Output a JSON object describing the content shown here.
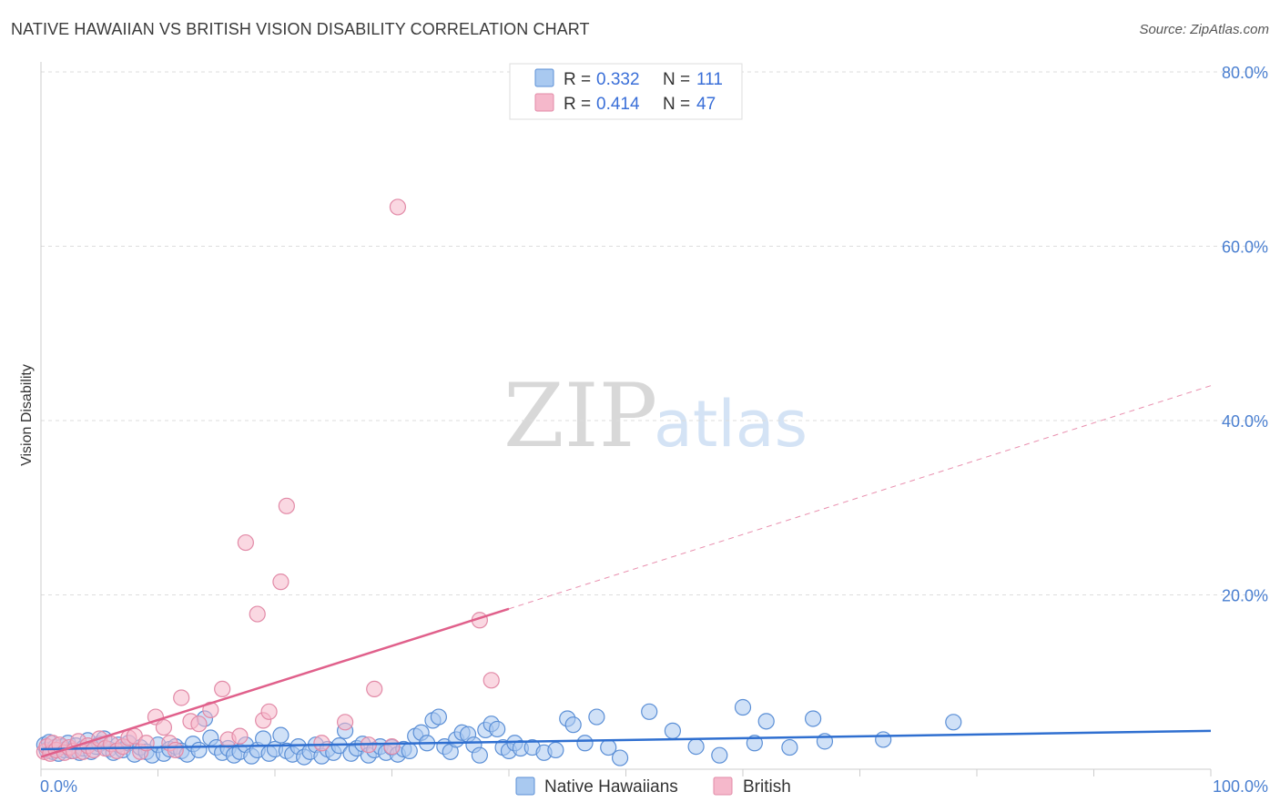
{
  "title": "NATIVE HAWAIIAN VS BRITISH VISION DISABILITY CORRELATION CHART",
  "source": "Source: ZipAtlas.com",
  "colors": {
    "blue_fill": "#a9c9f0",
    "blue_stroke": "#5b8fd6",
    "blue_line": "#2f6fd0",
    "pink_fill": "#f5b8cb",
    "pink_stroke": "#e28aa7",
    "pink_line": "#e0608b",
    "tick": "#4a7fd0",
    "grid": "#dddddd"
  },
  "watermark": {
    "zip": "ZIP",
    "atlas": "atlas"
  },
  "legend": {
    "rows": [
      {
        "r_label": "R = ",
        "r_value": "0.332",
        "n_label": "N = ",
        "n_value": "111"
      },
      {
        "r_label": "R = ",
        "r_value": "0.414",
        "n_label": "N = ",
        "n_value": "47"
      }
    ]
  },
  "bottom_legend": [
    "Native Hawaiians",
    "British"
  ],
  "chart_data": {
    "type": "scatter",
    "title": "NATIVE HAWAIIAN VS BRITISH VISION DISABILITY CORRELATION CHART",
    "xlabel": "",
    "ylabel": "Vision Disability",
    "xlim": [
      0,
      100
    ],
    "ylim": [
      0,
      80
    ],
    "x_tick_labels": [
      "0.0%",
      "100.0%"
    ],
    "y_ticks": [
      20,
      40,
      60,
      80
    ],
    "y_tick_labels": [
      "20.0%",
      "40.0%",
      "60.0%",
      "80.0%"
    ],
    "series": [
      {
        "name": "Native Hawaiians",
        "r": 0.332,
        "n": 111,
        "trend": {
          "x": [
            0,
            100
          ],
          "y": [
            2.3,
            4.4
          ],
          "dashed_from": null
        },
        "points": [
          [
            0.3,
            2.8
          ],
          [
            0.5,
            2.2
          ],
          [
            0.7,
            3.1
          ],
          [
            1.0,
            2.0
          ],
          [
            1.2,
            2.5
          ],
          [
            1.5,
            1.8
          ],
          [
            1.8,
            2.6
          ],
          [
            2.0,
            2.2
          ],
          [
            2.3,
            3.0
          ],
          [
            2.6,
            2.1
          ],
          [
            3.0,
            2.7
          ],
          [
            3.3,
            1.9
          ],
          [
            3.6,
            2.4
          ],
          [
            4.0,
            3.3
          ],
          [
            4.3,
            2.0
          ],
          [
            4.7,
            2.6
          ],
          [
            5.0,
            2.9
          ],
          [
            5.4,
            3.5
          ],
          [
            5.8,
            2.3
          ],
          [
            6.2,
            1.9
          ],
          [
            6.6,
            2.8
          ],
          [
            7.0,
            2.2
          ],
          [
            7.5,
            3.0
          ],
          [
            8.0,
            1.7
          ],
          [
            8.5,
            2.5
          ],
          [
            9.0,
            2.0
          ],
          [
            9.5,
            1.6
          ],
          [
            10.0,
            2.8
          ],
          [
            10.5,
            1.8
          ],
          [
            11.0,
            2.3
          ],
          [
            11.5,
            2.6
          ],
          [
            12.0,
            2.1
          ],
          [
            12.5,
            1.7
          ],
          [
            13.0,
            2.9
          ],
          [
            13.5,
            2.2
          ],
          [
            14.0,
            5.8
          ],
          [
            14.5,
            3.6
          ],
          [
            15.0,
            2.5
          ],
          [
            15.5,
            1.9
          ],
          [
            16.0,
            2.4
          ],
          [
            16.5,
            1.6
          ],
          [
            17.0,
            2.0
          ],
          [
            17.5,
            2.8
          ],
          [
            18.0,
            1.5
          ],
          [
            18.5,
            2.2
          ],
          [
            19.0,
            3.5
          ],
          [
            19.5,
            1.8
          ],
          [
            20.0,
            2.3
          ],
          [
            20.5,
            3.9
          ],
          [
            21.0,
            2.1
          ],
          [
            21.5,
            1.7
          ],
          [
            22.0,
            2.6
          ],
          [
            22.5,
            1.4
          ],
          [
            23.0,
            2.0
          ],
          [
            23.5,
            2.8
          ],
          [
            24.0,
            1.5
          ],
          [
            24.5,
            2.3
          ],
          [
            25.0,
            1.9
          ],
          [
            25.5,
            2.7
          ],
          [
            26.0,
            4.4
          ],
          [
            26.5,
            1.8
          ],
          [
            27.0,
            2.4
          ],
          [
            27.5,
            2.9
          ],
          [
            28.0,
            1.6
          ],
          [
            28.5,
            2.2
          ],
          [
            29.0,
            2.6
          ],
          [
            29.5,
            1.9
          ],
          [
            30.0,
            2.5
          ],
          [
            30.5,
            1.7
          ],
          [
            31.0,
            2.3
          ],
          [
            31.5,
            2.1
          ],
          [
            32.0,
            3.8
          ],
          [
            32.5,
            4.2
          ],
          [
            33.0,
            3.0
          ],
          [
            33.5,
            5.6
          ],
          [
            34.0,
            6.0
          ],
          [
            34.5,
            2.6
          ],
          [
            35.0,
            2.0
          ],
          [
            35.5,
            3.4
          ],
          [
            36.0,
            4.2
          ],
          [
            36.5,
            4.0
          ],
          [
            37.0,
            2.8
          ],
          [
            37.5,
            1.6
          ],
          [
            38.0,
            4.5
          ],
          [
            38.5,
            5.2
          ],
          [
            39.0,
            4.6
          ],
          [
            39.5,
            2.5
          ],
          [
            40.0,
            2.1
          ],
          [
            40.5,
            3.0
          ],
          [
            41.0,
            2.4
          ],
          [
            42.0,
            2.5
          ],
          [
            43.0,
            1.9
          ],
          [
            44.0,
            2.2
          ],
          [
            45.0,
            5.8
          ],
          [
            45.5,
            5.1
          ],
          [
            46.5,
            3.0
          ],
          [
            47.5,
            6.0
          ],
          [
            48.5,
            2.5
          ],
          [
            49.5,
            1.3
          ],
          [
            52.0,
            6.6
          ],
          [
            54.0,
            4.4
          ],
          [
            56.0,
            2.6
          ],
          [
            58.0,
            1.6
          ],
          [
            60.0,
            7.1
          ],
          [
            61.0,
            3.0
          ],
          [
            62.0,
            5.5
          ],
          [
            64.0,
            2.5
          ],
          [
            66.0,
            5.8
          ],
          [
            67.0,
            3.2
          ],
          [
            72.0,
            3.4
          ],
          [
            78.0,
            5.4
          ]
        ]
      },
      {
        "name": "British",
        "r": 0.414,
        "n": 47,
        "trend": {
          "x": [
            0,
            40
          ],
          "y": [
            1.4,
            18.4
          ],
          "dashed_to": {
            "x": 100,
            "y": 44.0
          }
        },
        "points": [
          [
            0.3,
            2.0
          ],
          [
            0.5,
            2.6
          ],
          [
            0.8,
            1.8
          ],
          [
            1.0,
            3.0
          ],
          [
            1.3,
            2.2
          ],
          [
            1.6,
            2.8
          ],
          [
            2.0,
            1.9
          ],
          [
            2.4,
            2.5
          ],
          [
            2.8,
            2.1
          ],
          [
            3.2,
            3.2
          ],
          [
            3.6,
            2.0
          ],
          [
            4.0,
            2.7
          ],
          [
            4.5,
            2.2
          ],
          [
            5.0,
            3.5
          ],
          [
            5.5,
            2.4
          ],
          [
            6.0,
            2.9
          ],
          [
            6.5,
            2.1
          ],
          [
            7.0,
            2.6
          ],
          [
            7.5,
            3.6
          ],
          [
            8.0,
            3.8
          ],
          [
            8.5,
            2.0
          ],
          [
            9.0,
            3.0
          ],
          [
            9.8,
            6.0
          ],
          [
            10.5,
            4.8
          ],
          [
            11.0,
            3.0
          ],
          [
            11.5,
            2.2
          ],
          [
            12.0,
            8.2
          ],
          [
            12.8,
            5.5
          ],
          [
            13.5,
            5.2
          ],
          [
            14.5,
            6.8
          ],
          [
            15.5,
            9.2
          ],
          [
            16.0,
            3.4
          ],
          [
            17.0,
            3.8
          ],
          [
            17.5,
            26.0
          ],
          [
            18.5,
            17.8
          ],
          [
            19.0,
            5.6
          ],
          [
            19.5,
            6.6
          ],
          [
            20.5,
            21.5
          ],
          [
            21.0,
            30.2
          ],
          [
            24.0,
            3.0
          ],
          [
            26.0,
            5.4
          ],
          [
            28.0,
            2.8
          ],
          [
            28.5,
            9.2
          ],
          [
            30.0,
            2.6
          ],
          [
            30.5,
            64.5
          ],
          [
            37.5,
            17.1
          ],
          [
            38.5,
            10.2
          ]
        ]
      }
    ]
  }
}
